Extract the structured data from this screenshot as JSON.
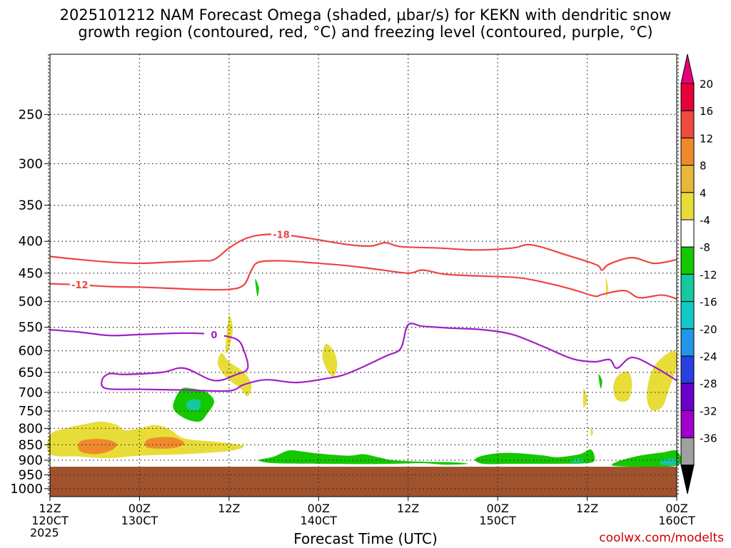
{
  "title": {
    "line1": "2025101212 NAM Forecast Omega (shaded, μbar/s) for KEKN with dendritic snow",
    "line2": "growth region (contoured, red, °C) and freezing level (contoured, purple, °C)"
  },
  "credit": "coolwx.com/modelts",
  "chart_data": {
    "type": "heatmap",
    "xlabel": "Forecast Time (UTC)",
    "ylabel": "",
    "x_ticks": [
      {
        "hour": 0,
        "line1": "12Z",
        "line2": "120CT",
        "line3": "2025"
      },
      {
        "hour": 12,
        "line1": "00Z",
        "line2": "130CT",
        "line3": ""
      },
      {
        "hour": 24,
        "line1": "12Z",
        "line2": "",
        "line3": ""
      },
      {
        "hour": 36,
        "line1": "00Z",
        "line2": "140CT",
        "line3": ""
      },
      {
        "hour": 48,
        "line1": "12Z",
        "line2": "",
        "line3": ""
      },
      {
        "hour": 60,
        "line1": "00Z",
        "line2": "150CT",
        "line3": ""
      },
      {
        "hour": 72,
        "line1": "12Z",
        "line2": "",
        "line3": ""
      },
      {
        "hour": 84,
        "line1": "00Z",
        "line2": "160CT",
        "line3": ""
      }
    ],
    "x_range_hours": [
      0,
      84
    ],
    "y_ticks": [
      250,
      300,
      350,
      400,
      450,
      500,
      550,
      600,
      650,
      700,
      750,
      800,
      850,
      900,
      950,
      1000
    ],
    "y_range_hPa": [
      200,
      1030
    ],
    "y_scale": "log-pressure",
    "grid": true,
    "surface_level_hPa": 922,
    "surface_color": "#a0522d",
    "colorbar": {
      "labels": [
        "20",
        "16",
        "12",
        "8",
        "4",
        "-4",
        "-8",
        "-12",
        "-16",
        "-20",
        "-24",
        "-28",
        "-32",
        "-36"
      ],
      "colors": [
        "#e8003c",
        "#f04a3e",
        "#ef8a2b",
        "#e8b739",
        "#e8dd38",
        "#ffffff",
        "#14c800",
        "#14c8a0",
        "#14c8c8",
        "#2196e8",
        "#2840e0",
        "#6a00cc",
        "#a000c8",
        "#a0a0a0"
      ],
      "top_arrow_color": "#e8007a",
      "bottom_arrow_color": "#000000"
    },
    "series": [
      {
        "name": "-18",
        "color": "#ee4444",
        "points": [
          [
            0,
            423
          ],
          [
            4,
            428
          ],
          [
            8,
            432
          ],
          [
            12,
            434
          ],
          [
            16,
            432
          ],
          [
            20,
            430
          ],
          [
            22,
            428
          ],
          [
            24,
            410
          ],
          [
            26,
            397
          ],
          [
            28,
            391
          ],
          [
            31,
            390
          ],
          [
            35,
            396
          ],
          [
            40,
            405
          ],
          [
            43,
            407
          ],
          [
            45,
            402
          ],
          [
            47,
            408
          ],
          [
            52,
            410
          ],
          [
            57,
            413
          ],
          [
            62,
            410
          ],
          [
            64,
            405
          ],
          [
            66,
            409
          ],
          [
            69,
            420
          ],
          [
            72,
            431
          ],
          [
            73.5,
            438
          ],
          [
            74,
            445
          ],
          [
            75,
            435
          ],
          [
            78,
            425
          ],
          [
            81,
            434
          ],
          [
            84,
            428
          ]
        ],
        "label_hour": 32
      },
      {
        "name": "-12",
        "color": "#ee4444",
        "points": [
          [
            0,
            468
          ],
          [
            4,
            470
          ],
          [
            8,
            473
          ],
          [
            12,
            474
          ],
          [
            16,
            476
          ],
          [
            20,
            478
          ],
          [
            24,
            478
          ],
          [
            26,
            470
          ],
          [
            27,
            445
          ],
          [
            28,
            432
          ],
          [
            31,
            430
          ],
          [
            35,
            433
          ],
          [
            40,
            438
          ],
          [
            44,
            444
          ],
          [
            48,
            450
          ],
          [
            50,
            445
          ],
          [
            53,
            452
          ],
          [
            58,
            455
          ],
          [
            63,
            458
          ],
          [
            67,
            468
          ],
          [
            70,
            478
          ],
          [
            73,
            490
          ],
          [
            74,
            487
          ],
          [
            77,
            480
          ],
          [
            79,
            493
          ],
          [
            82,
            488
          ],
          [
            84,
            495
          ]
        ],
        "label_hour": 6
      },
      {
        "name": "0",
        "color": "#a020c8",
        "points": [
          [
            0,
            555
          ],
          [
            4,
            560
          ],
          [
            8,
            567
          ],
          [
            12,
            565
          ],
          [
            18,
            562
          ],
          [
            22,
            565
          ],
          [
            25,
            575
          ],
          [
            26,
            600
          ],
          [
            26.5,
            640
          ],
          [
            25,
            655
          ],
          [
            22,
            670
          ],
          [
            18,
            640
          ],
          [
            15,
            650
          ],
          [
            10,
            655
          ],
          [
            8,
            653
          ],
          [
            7,
            668
          ],
          [
            7.5,
            690
          ],
          [
            12,
            692
          ],
          [
            18,
            694
          ],
          [
            24,
            696
          ],
          [
            26,
            680
          ],
          [
            29,
            668
          ],
          [
            33,
            675
          ],
          [
            37,
            665
          ],
          [
            40,
            652
          ],
          [
            45,
            612
          ],
          [
            47,
            595
          ],
          [
            48,
            545
          ],
          [
            50,
            548
          ],
          [
            54,
            552
          ],
          [
            58,
            555
          ],
          [
            62,
            565
          ],
          [
            66,
            590
          ],
          [
            70,
            618
          ],
          [
            73,
            625
          ],
          [
            75,
            620
          ],
          [
            76,
            640
          ],
          [
            78,
            615
          ],
          [
            81,
            637
          ],
          [
            84,
            670
          ]
        ],
        "label_hour": 22
      }
    ],
    "omega_regions": [
      {
        "value": 6,
        "points": [
          [
            0,
            820
          ],
          [
            2,
            800
          ],
          [
            5,
            786
          ],
          [
            7,
            780
          ],
          [
            9,
            790
          ],
          [
            10,
            805
          ],
          [
            12,
            800
          ],
          [
            14,
            790
          ],
          [
            16,
            802
          ],
          [
            18,
            830
          ],
          [
            22,
            840
          ],
          [
            24,
            845
          ],
          [
            26,
            855
          ],
          [
            24,
            870
          ],
          [
            18,
            880
          ],
          [
            12,
            885
          ],
          [
            8,
            893
          ],
          [
            4,
            888
          ],
          [
            0,
            880
          ]
        ]
      },
      {
        "value": 10,
        "points": [
          [
            4,
            840
          ],
          [
            6,
            832
          ],
          [
            8,
            836
          ],
          [
            9,
            850
          ],
          [
            8,
            870
          ],
          [
            6,
            880
          ],
          [
            4,
            870
          ]
        ]
      },
      {
        "value": 10,
        "points": [
          [
            13,
            835
          ],
          [
            15,
            826
          ],
          [
            17,
            830
          ],
          [
            18,
            848
          ],
          [
            16,
            862
          ],
          [
            13,
            858
          ]
        ]
      },
      {
        "value": 6,
        "points": [
          [
            24,
            528
          ],
          [
            24.5,
            555
          ],
          [
            24,
            595
          ],
          [
            23.5,
            600
          ]
        ]
      },
      {
        "value": 6,
        "points": [
          [
            23,
            605
          ],
          [
            24,
            625
          ],
          [
            26,
            650
          ],
          [
            27,
            680
          ],
          [
            26.5,
            710
          ],
          [
            25.5,
            690
          ],
          [
            23.5,
            660
          ],
          [
            22.5,
            630
          ]
        ]
      },
      {
        "value": 6,
        "points": [
          [
            37,
            585
          ],
          [
            38,
            600
          ],
          [
            38.5,
            630
          ],
          [
            38,
            660
          ],
          [
            37,
            640
          ],
          [
            36.5,
            610
          ]
        ]
      },
      {
        "value": 6,
        "points": [
          [
            76,
            660
          ],
          [
            77.5,
            648
          ],
          [
            78,
            680
          ],
          [
            77.5,
            720
          ],
          [
            76,
            720
          ],
          [
            75.5,
            690
          ]
        ]
      },
      {
        "value": 6,
        "points": [
          [
            81,
            635
          ],
          [
            83.5,
            600
          ],
          [
            84,
            630
          ],
          [
            83,
            690
          ],
          [
            82,
            740
          ],
          [
            80.5,
            745
          ],
          [
            80,
            700
          ]
        ]
      },
      {
        "value": 6,
        "points": [
          [
            71.5,
            690
          ],
          [
            72,
            720
          ],
          [
            71.5,
            740
          ]
        ]
      },
      {
        "value": 6,
        "points": [
          [
            74.5,
            458
          ],
          [
            74.8,
            475
          ],
          [
            74.6,
            492
          ]
        ]
      },
      {
        "value": 6,
        "points": [
          [
            72.5,
            798
          ],
          [
            72.8,
            812
          ],
          [
            72.5,
            822
          ]
        ]
      },
      {
        "value": -6,
        "points": [
          [
            17.5,
            693
          ],
          [
            19,
            690
          ],
          [
            21,
            700
          ],
          [
            22,
            725
          ],
          [
            21,
            760
          ],
          [
            20,
            780
          ],
          [
            18,
            770
          ],
          [
            16.5,
            740
          ]
        ]
      },
      {
        "value": -6,
        "points": [
          [
            27.5,
            460
          ],
          [
            28,
            475
          ],
          [
            27.8,
            490
          ]
        ]
      },
      {
        "value": -6,
        "points": [
          [
            73.5,
            655
          ],
          [
            74,
            670
          ],
          [
            73.8,
            690
          ]
        ]
      },
      {
        "value": -6,
        "points": [
          [
            28,
            900
          ],
          [
            30,
            888
          ],
          [
            32,
            868
          ],
          [
            34,
            872
          ],
          [
            36,
            878
          ],
          [
            40,
            885
          ],
          [
            42,
            880
          ],
          [
            44,
            890
          ],
          [
            46,
            900
          ],
          [
            50,
            905
          ],
          [
            54,
            907
          ],
          [
            56,
            912
          ],
          [
            53,
            915
          ],
          [
            50,
            910
          ],
          [
            46,
            912
          ],
          [
            42,
            913
          ],
          [
            36,
            912
          ],
          [
            30,
            910
          ]
        ]
      },
      {
        "value": -6,
        "points": [
          [
            57,
            895
          ],
          [
            59,
            880
          ],
          [
            62,
            876
          ],
          [
            66,
            884
          ],
          [
            68,
            890
          ],
          [
            71,
            880
          ],
          [
            72.5,
            865
          ],
          [
            73,
            898
          ],
          [
            72,
            910
          ],
          [
            68,
            912
          ],
          [
            62,
            912
          ],
          [
            58,
            912
          ]
        ]
      },
      {
        "value": -6,
        "points": [
          [
            76,
            905
          ],
          [
            79,
            885
          ],
          [
            82,
            875
          ],
          [
            84,
            870
          ],
          [
            84,
            918
          ],
          [
            76,
            920
          ]
        ]
      },
      {
        "value": -10,
        "points": [
          [
            18.5,
            722
          ],
          [
            20,
            720
          ],
          [
            20,
            745
          ],
          [
            18.5,
            745
          ]
        ]
      },
      {
        "value": -10,
        "points": [
          [
            70,
            900
          ],
          [
            71,
            895
          ],
          [
            71.5,
            905
          ],
          [
            70,
            908
          ]
        ]
      },
      {
        "value": -10,
        "points": [
          [
            82,
            900
          ],
          [
            84,
            895
          ],
          [
            84,
            915
          ],
          [
            82,
            915
          ]
        ]
      }
    ]
  }
}
